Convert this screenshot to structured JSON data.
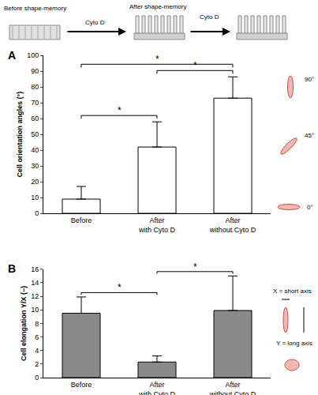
{
  "chart_data": [
    {
      "type": "bar",
      "panel_label": "A",
      "annotations": [
        "Before shape-memory",
        "Cyto D",
        "After shape-memory",
        "Cyto D"
      ],
      "y_label": "Cell orientation angles (°)",
      "categories": [
        "Before",
        "After with Cyto D",
        "After without Cyto D"
      ],
      "values": [
        9,
        42,
        73
      ],
      "errors": [
        8,
        16,
        13.5
      ],
      "color": "#ffffff",
      "ylim": [
        0,
        100
      ],
      "yticks": [
        0,
        10,
        20,
        30,
        40,
        50,
        60,
        70,
        80,
        90,
        100
      ],
      "grid": false,
      "significance": [
        {
          "pair": [
            0,
            1
          ],
          "label": "*"
        },
        {
          "pair": [
            1,
            2
          ],
          "label": "*"
        },
        {
          "pair": [
            0,
            2
          ],
          "label": "*"
        }
      ],
      "icon_labels": [
        "90°",
        "45°",
        "0°"
      ]
    },
    {
      "type": "bar",
      "panel_label": "B",
      "y_label": "Cell elongation Y/X (−)",
      "categories": [
        "Before",
        "After with Cyto D",
        "After without Cyto D"
      ],
      "values": [
        9.5,
        2.3,
        9.9
      ],
      "errors": [
        2.4,
        0.9,
        5.1
      ],
      "color": "#8a8a8a",
      "ylim": [
        0,
        16
      ],
      "yticks": [
        0,
        2,
        4,
        6,
        8,
        10,
        12,
        14,
        16
      ],
      "grid": false,
      "significance": [
        {
          "pair": [
            0,
            1
          ],
          "label": "*"
        },
        {
          "pair": [
            1,
            2
          ],
          "label": "*"
        }
      ],
      "icon_labels": [
        "X = short axis",
        "Y = long axis"
      ]
    }
  ]
}
